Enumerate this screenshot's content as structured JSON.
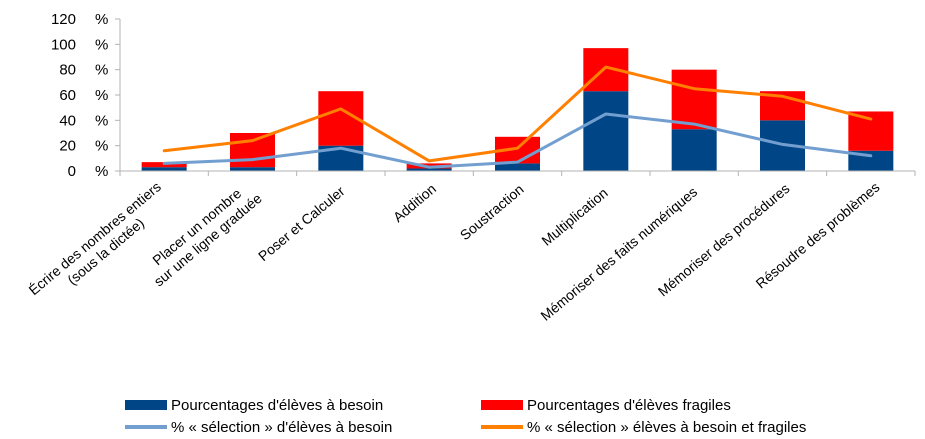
{
  "chart_data": {
    "type": "bar",
    "stacked": true,
    "categories": [
      [
        "Écrire des nombres entiers",
        "(sous la dictée)"
      ],
      [
        "Placer un nombre",
        "sur une ligne graduée"
      ],
      [
        "Poser et Calculer"
      ],
      [
        "Addition"
      ],
      [
        "Soustraction"
      ],
      [
        "Multiplication"
      ],
      [
        "Mémoriser des faits numériques"
      ],
      [
        "Mémoriser des procédures"
      ],
      [
        "Résoudre des problèmes"
      ]
    ],
    "ylim": [
      0,
      120
    ],
    "yticks": [
      "0 %",
      "20 %",
      "40 %",
      "60 %",
      "80 %",
      "100 %",
      "120 %"
    ],
    "ytick_values": [
      0,
      20,
      40,
      60,
      80,
      100,
      120
    ],
    "grid": false,
    "legend_position": "bottom",
    "bar_series": [
      {
        "name": "Pourcentages d'élèves à besoin",
        "color": "#004586",
        "values": [
          3,
          3,
          20,
          2,
          6,
          63,
          33,
          40,
          16
        ]
      },
      {
        "name": "Pourcentages d'élèves fragiles",
        "color": "#ff0000",
        "values": [
          4,
          27,
          43,
          4,
          21,
          34,
          47,
          23,
          31
        ]
      }
    ],
    "line_series": [
      {
        "name": "% « sélection » d'élèves à besoin",
        "color": "#729fcf",
        "values": [
          6,
          9,
          18,
          3,
          7,
          45,
          37,
          21,
          12
        ]
      },
      {
        "name": "% « sélection » élèves à besoin et fragiles",
        "color": "#ff8000",
        "values": [
          16,
          24,
          49,
          8,
          18,
          82,
          65,
          59,
          41
        ]
      }
    ]
  }
}
